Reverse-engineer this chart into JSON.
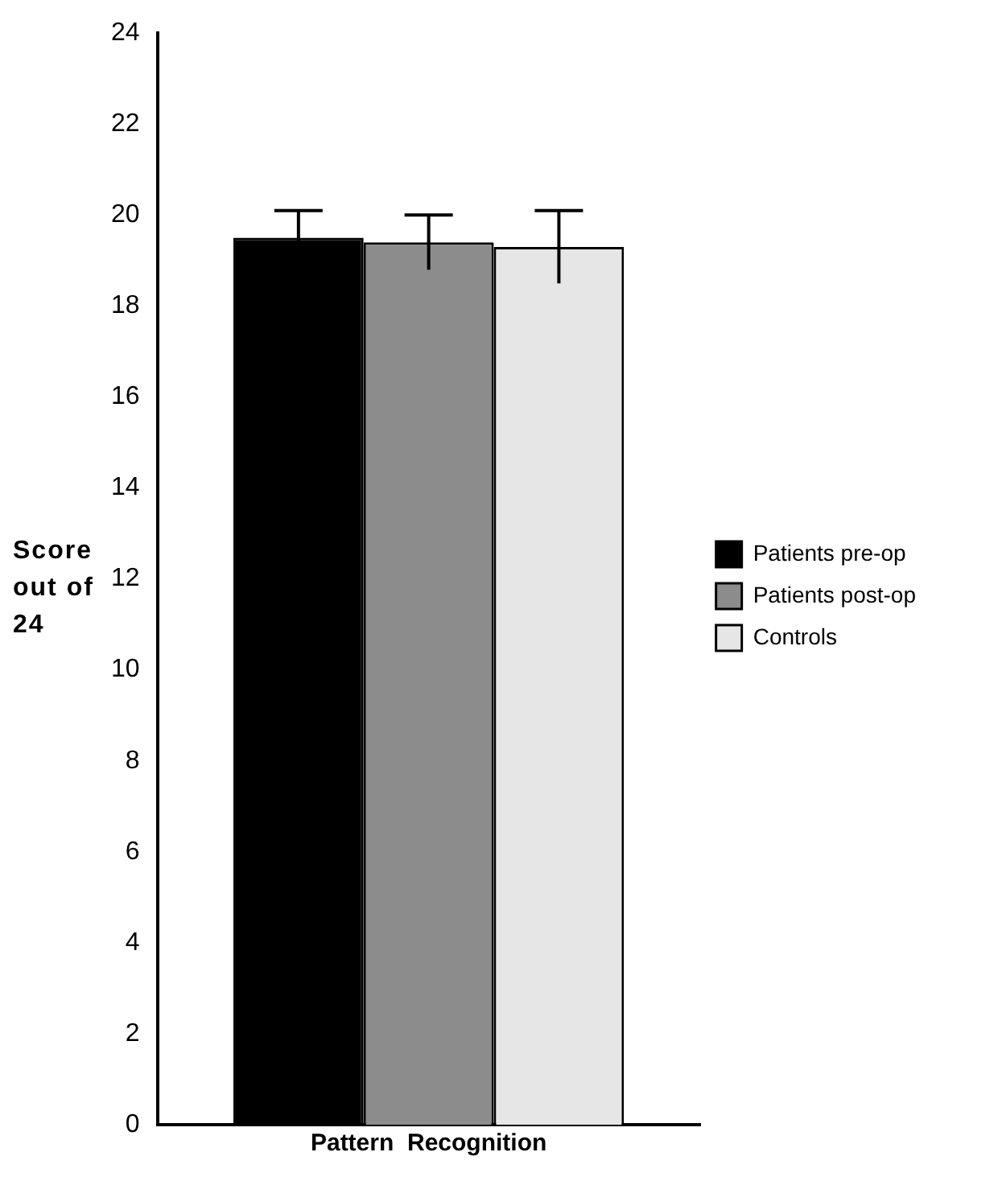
{
  "chart_data": {
    "type": "bar",
    "ylabel": "Score out of 24",
    "categories": [
      "Pattern  Recognition"
    ],
    "series": [
      {
        "name": "Patients pre-op",
        "color": "#000000",
        "values": [
          19.5
        ],
        "errors": [
          0.6
        ]
      },
      {
        "name": "Patients post-op",
        "color": "#8c8c8c",
        "values": [
          19.4
        ],
        "errors": [
          0.6
        ]
      },
      {
        "name": "Controls",
        "color": "#e6e6e6",
        "values": [
          19.3
        ],
        "errors": [
          0.8
        ]
      }
    ],
    "ylim": [
      0,
      24
    ],
    "yticks": [
      0,
      2,
      4,
      6,
      8,
      10,
      12,
      14,
      16,
      18,
      20,
      22,
      24
    ],
    "grid": false,
    "legend": "right"
  }
}
